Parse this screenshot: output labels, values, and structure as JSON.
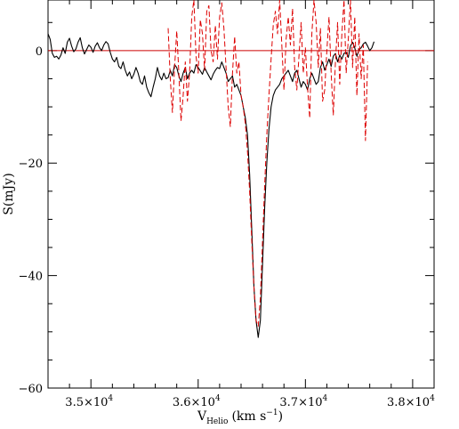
{
  "chart_data": {
    "type": "line",
    "title": "",
    "xlabel": "V",
    "xlabel_sub": "Helio",
    "xlabel_units": "(km s",
    "xlabel_units_sup": "−1",
    "xlabel_units_close": ")",
    "ylabel": "S(mJy)",
    "xlim": [
      34600,
      38200
    ],
    "ylim": [
      -60,
      9
    ],
    "x_ticks": [
      {
        "value": 35000,
        "mantissa": "3.5×10",
        "exp": "4"
      },
      {
        "value": 36000,
        "mantissa": "3.6×10",
        "exp": "4"
      },
      {
        "value": 37000,
        "mantissa": "3.7×10",
        "exp": "4"
      },
      {
        "value": 38000,
        "mantissa": "3.8×10",
        "exp": "4"
      }
    ],
    "y_ticks": [
      {
        "value": 0,
        "label": "0"
      },
      {
        "value": -20,
        "label": "−20"
      },
      {
        "value": -40,
        "label": "−40"
      },
      {
        "value": -60,
        "label": "−60"
      }
    ],
    "zero_line": {
      "y": 0,
      "color": "#cc0000"
    },
    "grid": false,
    "series": [
      {
        "style": "solid",
        "color": "#000000",
        "points": [
          [
            34600,
            3.0
          ],
          [
            34620,
            2.0
          ],
          [
            34640,
            -0.5
          ],
          [
            34660,
            -1.2
          ],
          [
            34680,
            -1.0
          ],
          [
            34700,
            -1.5
          ],
          [
            34720,
            -0.8
          ],
          [
            34740,
            0.5
          ],
          [
            34760,
            -0.5
          ],
          [
            34780,
            1.5
          ],
          [
            34800,
            2.2
          ],
          [
            34820,
            0.8
          ],
          [
            34840,
            -0.2
          ],
          [
            34860,
            0.3
          ],
          [
            34880,
            1.5
          ],
          [
            34900,
            2.3
          ],
          [
            34920,
            0.5
          ],
          [
            34940,
            -0.6
          ],
          [
            34960,
            0.2
          ],
          [
            34980,
            1.0
          ],
          [
            35000,
            0.6
          ],
          [
            35020,
            -0.3
          ],
          [
            35040,
            0.8
          ],
          [
            35060,
            1.4
          ],
          [
            35080,
            0.5
          ],
          [
            35100,
            0.0
          ],
          [
            35120,
            1.0
          ],
          [
            35140,
            1.6
          ],
          [
            35160,
            1.2
          ],
          [
            35180,
            -0.3
          ],
          [
            35200,
            -1.5
          ],
          [
            35220,
            -2.0
          ],
          [
            35240,
            -1.2
          ],
          [
            35260,
            -2.8
          ],
          [
            35280,
            -3.2
          ],
          [
            35300,
            -2.0
          ],
          [
            35320,
            -3.5
          ],
          [
            35340,
            -4.5
          ],
          [
            35360,
            -3.8
          ],
          [
            35380,
            -5.0
          ],
          [
            35400,
            -4.2
          ],
          [
            35420,
            -3.0
          ],
          [
            35440,
            -4.0
          ],
          [
            35460,
            -5.5
          ],
          [
            35480,
            -6.0
          ],
          [
            35500,
            -4.5
          ],
          [
            35520,
            -6.5
          ],
          [
            35540,
            -7.5
          ],
          [
            35560,
            -8.2
          ],
          [
            35580,
            -6.5
          ],
          [
            35600,
            -5.0
          ],
          [
            35620,
            -3.0
          ],
          [
            35640,
            -4.5
          ],
          [
            35660,
            -5.2
          ],
          [
            35680,
            -4.0
          ],
          [
            35700,
            -5.0
          ],
          [
            35720,
            -4.8
          ],
          [
            35740,
            -3.5
          ],
          [
            35760,
            -4.5
          ],
          [
            35780,
            -2.5
          ],
          [
            35800,
            -3.0
          ],
          [
            35820,
            -4.5
          ],
          [
            35840,
            -5.5
          ],
          [
            35860,
            -4.0
          ],
          [
            35880,
            -3.0
          ],
          [
            35900,
            -5.0
          ],
          [
            35920,
            -4.0
          ],
          [
            35940,
            -3.5
          ],
          [
            35960,
            -4.0
          ],
          [
            35980,
            -2.5
          ],
          [
            36000,
            -3.0
          ],
          [
            36020,
            -3.6
          ],
          [
            36040,
            -4.2
          ],
          [
            36060,
            -3.0
          ],
          [
            36080,
            -3.8
          ],
          [
            36100,
            -4.5
          ],
          [
            36120,
            -5.2
          ],
          [
            36140,
            -4.2
          ],
          [
            36160,
            -3.5
          ],
          [
            36180,
            -3.0
          ],
          [
            36200,
            -3.2
          ],
          [
            36220,
            -2.0
          ],
          [
            36240,
            -3.0
          ],
          [
            36260,
            -4.0
          ],
          [
            36280,
            -5.5
          ],
          [
            36300,
            -5.0
          ],
          [
            36320,
            -4.5
          ],
          [
            36340,
            -6.5
          ],
          [
            36360,
            -6.0
          ],
          [
            36380,
            -7.0
          ],
          [
            36400,
            -8.0
          ],
          [
            36420,
            -10.0
          ],
          [
            36440,
            -12.0
          ],
          [
            36460,
            -15.0
          ],
          [
            36480,
            -22.0
          ],
          [
            36500,
            -32.0
          ],
          [
            36520,
            -42.0
          ],
          [
            36540,
            -48.0
          ],
          [
            36560,
            -51.0
          ],
          [
            36580,
            -48.0
          ],
          [
            36600,
            -38.0
          ],
          [
            36620,
            -28.0
          ],
          [
            36640,
            -20.0
          ],
          [
            36660,
            -14.0
          ],
          [
            36680,
            -10.0
          ],
          [
            36700,
            -8.0
          ],
          [
            36720,
            -7.0
          ],
          [
            36740,
            -6.5
          ],
          [
            36760,
            -6.0
          ],
          [
            36780,
            -5.0
          ],
          [
            36800,
            -4.5
          ],
          [
            36820,
            -4.0
          ],
          [
            36840,
            -3.5
          ],
          [
            36860,
            -4.5
          ],
          [
            36880,
            -5.5
          ],
          [
            36900,
            -4.0
          ],
          [
            36920,
            -3.5
          ],
          [
            36940,
            -5.0
          ],
          [
            36960,
            -6.5
          ],
          [
            36980,
            -5.5
          ],
          [
            37000,
            -6.0
          ],
          [
            37020,
            -7.0
          ],
          [
            37040,
            -5.0
          ],
          [
            37060,
            -4.0
          ],
          [
            37080,
            -5.0
          ],
          [
            37100,
            -6.0
          ],
          [
            37120,
            -5.5
          ],
          [
            37140,
            -3.0
          ],
          [
            37160,
            -2.0
          ],
          [
            37180,
            -3.5
          ],
          [
            37200,
            -2.5
          ],
          [
            37220,
            -1.5
          ],
          [
            37240,
            -2.8
          ],
          [
            37260,
            -1.0
          ],
          [
            37280,
            -0.5
          ],
          [
            37300,
            -2.0
          ],
          [
            37320,
            -0.8
          ],
          [
            37340,
            -1.5
          ],
          [
            37360,
            -0.5
          ],
          [
            37380,
            -0.3
          ],
          [
            37400,
            -1.2
          ],
          [
            37420,
            0.8
          ],
          [
            37440,
            1.5
          ],
          [
            37460,
            0.5
          ],
          [
            37480,
            -1.0
          ],
          [
            37500,
            0.2
          ],
          [
            37520,
            0.5
          ],
          [
            37540,
            1.2
          ],
          [
            37560,
            1.5
          ],
          [
            37580,
            0.8
          ],
          [
            37600,
            0.0
          ],
          [
            37620,
            0.5
          ],
          [
            37640,
            1.6
          ]
        ]
      },
      {
        "style": "dashed",
        "color": "#dd0000",
        "points": [
          [
            35720,
            4.0
          ],
          [
            35740,
            -5.0
          ],
          [
            35760,
            -11.0
          ],
          [
            35780,
            -3.0
          ],
          [
            35800,
            3.5
          ],
          [
            35820,
            -4.0
          ],
          [
            35840,
            -12.5
          ],
          [
            35860,
            -8.0
          ],
          [
            35880,
            -2.0
          ],
          [
            35900,
            -9.0
          ],
          [
            35920,
            -4.0
          ],
          [
            35940,
            6.0
          ],
          [
            35960,
            9.0
          ],
          [
            35980,
            -1.0
          ],
          [
            36000,
            -4.0
          ],
          [
            36020,
            5.5
          ],
          [
            36040,
            3.0
          ],
          [
            36060,
            -3.5
          ],
          [
            36080,
            7.0
          ],
          [
            36100,
            8.0
          ],
          [
            36120,
            0.0
          ],
          [
            36140,
            -2.0
          ],
          [
            36160,
            4.5
          ],
          [
            36180,
            -1.5
          ],
          [
            36200,
            6.0
          ],
          [
            36220,
            8.5
          ],
          [
            36240,
            4.0
          ],
          [
            36260,
            -3.0
          ],
          [
            36280,
            -10.0
          ],
          [
            36300,
            -13.5
          ],
          [
            36320,
            -4.0
          ],
          [
            36340,
            2.5
          ],
          [
            36360,
            -4.0
          ],
          [
            36380,
            -2.0
          ],
          [
            36400,
            -8.0
          ],
          [
            36420,
            -10.0
          ],
          [
            36440,
            -13.0
          ],
          [
            36460,
            -18.0
          ],
          [
            36480,
            -25.0
          ],
          [
            36500,
            -34.0
          ],
          [
            36520,
            -42.0
          ],
          [
            36540,
            -48.0
          ],
          [
            36560,
            -49.0
          ],
          [
            36580,
            -44.0
          ],
          [
            36600,
            -34.0
          ],
          [
            36620,
            -24.0
          ],
          [
            36640,
            -15.0
          ],
          [
            36660,
            -8.0
          ],
          [
            36680,
            -1.5
          ],
          [
            36700,
            4.5
          ],
          [
            36720,
            7.0
          ],
          [
            36740,
            3.0
          ],
          [
            36760,
            9.0
          ],
          [
            36780,
            1.0
          ],
          [
            36800,
            -7.0
          ],
          [
            36820,
            2.0
          ],
          [
            36840,
            6.0
          ],
          [
            36860,
            1.0
          ],
          [
            36880,
            7.5
          ],
          [
            36900,
            -3.0
          ],
          [
            36920,
            -7.0
          ],
          [
            36940,
            -1.0
          ],
          [
            36960,
            5.0
          ],
          [
            36980,
            -4.0
          ],
          [
            37000,
            0.5
          ],
          [
            37020,
            -6.5
          ],
          [
            37040,
            -12.0
          ],
          [
            37060,
            3.0
          ],
          [
            37080,
            9.0
          ],
          [
            37100,
            5.0
          ],
          [
            37120,
            -3.0
          ],
          [
            37140,
            4.0
          ],
          [
            37160,
            -9.0
          ],
          [
            37180,
            -7.0
          ],
          [
            37200,
            0.0
          ],
          [
            37220,
            6.0
          ],
          [
            37240,
            -4.0
          ],
          [
            37260,
            -11.5
          ],
          [
            37280,
            -2.0
          ],
          [
            37300,
            5.0
          ],
          [
            37320,
            -6.0
          ],
          [
            37340,
            3.0
          ],
          [
            37360,
            9.0
          ],
          [
            37380,
            -4.0
          ],
          [
            37400,
            2.0
          ],
          [
            37420,
            9.0
          ],
          [
            37440,
            -3.0
          ],
          [
            37460,
            6.0
          ],
          [
            37480,
            -8.0
          ],
          [
            37500,
            3.0
          ],
          [
            37520,
            -5.0
          ],
          [
            37540,
            1.0
          ],
          [
            37560,
            -16.0
          ],
          [
            37580,
            -2.0
          ]
        ]
      }
    ]
  }
}
